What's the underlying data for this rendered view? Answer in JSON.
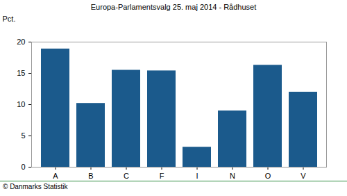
{
  "chart_data": {
    "type": "bar",
    "title": "Europa-Parlamentsvalg 25. maj 2014 - Rådhuset",
    "y_label": "Pct.",
    "caption": "© Danmarks Statistik",
    "categories": [
      "A",
      "B",
      "C",
      "F",
      "I",
      "N",
      "O",
      "V"
    ],
    "values": [
      18.9,
      10.2,
      15.5,
      15.4,
      3.2,
      9.0,
      16.3,
      12.0
    ],
    "color": "#1b5a8c",
    "ylim": [
      0,
      20
    ],
    "yticks": [
      0,
      5,
      10,
      15,
      20
    ],
    "grid": false
  }
}
